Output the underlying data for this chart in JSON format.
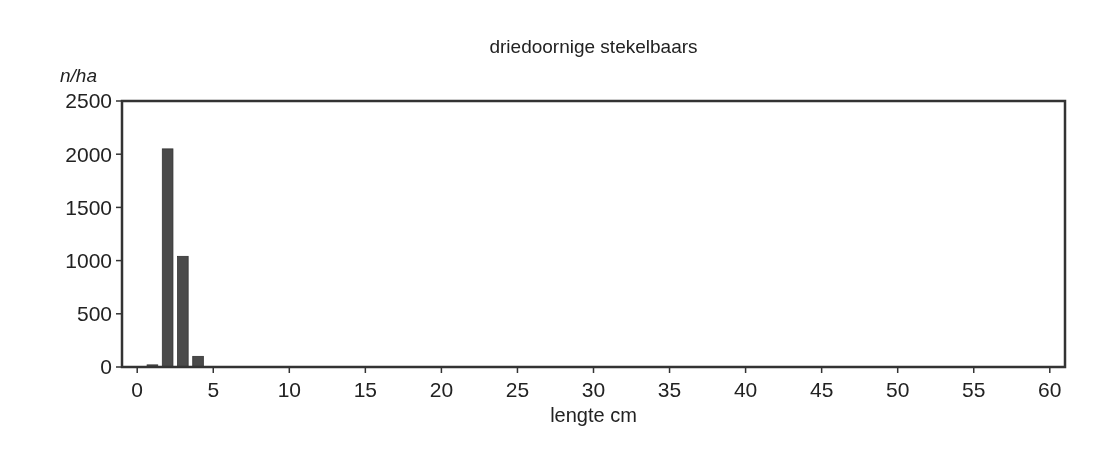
{
  "chart_data": {
    "type": "bar",
    "title": "driedoornige stekelbaars",
    "xlabel": "lengte cm",
    "ylabel": "n/ha",
    "x": [
      1,
      2,
      3,
      4
    ],
    "values": [
      20,
      2050,
      1040,
      100
    ],
    "color": "#4a4a4a",
    "xlim": [
      -1,
      61
    ],
    "xticks": [
      0,
      5,
      10,
      15,
      20,
      25,
      30,
      35,
      40,
      45,
      50,
      55,
      60
    ],
    "ylim": [
      0,
      2500
    ],
    "yticks": [
      0,
      500,
      1000,
      1500,
      2000,
      2500
    ],
    "grid": false
  }
}
